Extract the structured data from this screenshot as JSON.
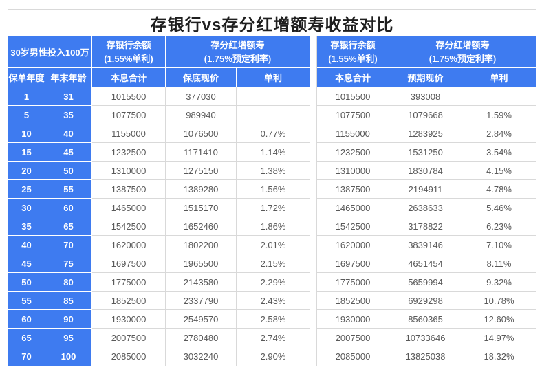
{
  "title": "存银行vs存分红增额寿收益对比",
  "colors": {
    "header_blue": "#3e7bf0",
    "grid_line": "#d9d9d9",
    "data_text": "#595959",
    "header_text": "#ffffff",
    "title_text": "#1f1f1f"
  },
  "header": {
    "corner": "30岁男性投入100万",
    "groups": {
      "left_bank": {
        "line1": "存银行余额",
        "line2": "(1.55%单利)"
      },
      "left_insurance": {
        "line1": "存分红增额寿",
        "line2": "(1.75%预定利率)"
      },
      "right_bank": {
        "line1": "存银行余额",
        "line2": "(1.55%单利)"
      },
      "right_insurance": {
        "line1": "存分红增额寿",
        "line2": "(1.75%预定利率)"
      }
    },
    "subheaders": {
      "policy_year": "保单年度",
      "age_year_end": "年末年龄",
      "left_principal_interest": "本息合计",
      "guaranteed_cash_value": "保底现价",
      "left_simple_interest": "单利",
      "right_principal_interest": "本息合计",
      "expected_cash_value": "预期现价",
      "right_simple_interest": "单利"
    }
  },
  "rows": [
    {
      "policy_year": "1",
      "age": "31",
      "bank_total_left": "1015500",
      "guaranteed_value": "377030",
      "simple_rate_left": "",
      "bank_total_right": "1015500",
      "expected_value": "393008",
      "simple_rate_right": ""
    },
    {
      "policy_year": "5",
      "age": "35",
      "bank_total_left": "1077500",
      "guaranteed_value": "989940",
      "simple_rate_left": "",
      "bank_total_right": "1077500",
      "expected_value": "1079668",
      "simple_rate_right": "1.59%"
    },
    {
      "policy_year": "10",
      "age": "40",
      "bank_total_left": "1155000",
      "guaranteed_value": "1076500",
      "simple_rate_left": "0.77%",
      "bank_total_right": "1155000",
      "expected_value": "1283925",
      "simple_rate_right": "2.84%"
    },
    {
      "policy_year": "15",
      "age": "45",
      "bank_total_left": "1232500",
      "guaranteed_value": "1171410",
      "simple_rate_left": "1.14%",
      "bank_total_right": "1232500",
      "expected_value": "1531250",
      "simple_rate_right": "3.54%"
    },
    {
      "policy_year": "20",
      "age": "50",
      "bank_total_left": "1310000",
      "guaranteed_value": "1275150",
      "simple_rate_left": "1.38%",
      "bank_total_right": "1310000",
      "expected_value": "1830784",
      "simple_rate_right": "4.15%"
    },
    {
      "policy_year": "25",
      "age": "55",
      "bank_total_left": "1387500",
      "guaranteed_value": "1389280",
      "simple_rate_left": "1.56%",
      "bank_total_right": "1387500",
      "expected_value": "2194911",
      "simple_rate_right": "4.78%"
    },
    {
      "policy_year": "30",
      "age": "60",
      "bank_total_left": "1465000",
      "guaranteed_value": "1515170",
      "simple_rate_left": "1.72%",
      "bank_total_right": "1465000",
      "expected_value": "2638633",
      "simple_rate_right": "5.46%"
    },
    {
      "policy_year": "35",
      "age": "65",
      "bank_total_left": "1542500",
      "guaranteed_value": "1652460",
      "simple_rate_left": "1.86%",
      "bank_total_right": "1542500",
      "expected_value": "3178822",
      "simple_rate_right": "6.23%"
    },
    {
      "policy_year": "40",
      "age": "70",
      "bank_total_left": "1620000",
      "guaranteed_value": "1802200",
      "simple_rate_left": "2.01%",
      "bank_total_right": "1620000",
      "expected_value": "3839146",
      "simple_rate_right": "7.10%"
    },
    {
      "policy_year": "45",
      "age": "75",
      "bank_total_left": "1697500",
      "guaranteed_value": "1965500",
      "simple_rate_left": "2.15%",
      "bank_total_right": "1697500",
      "expected_value": "4651454",
      "simple_rate_right": "8.11%"
    },
    {
      "policy_year": "50",
      "age": "80",
      "bank_total_left": "1775000",
      "guaranteed_value": "2143580",
      "simple_rate_left": "2.29%",
      "bank_total_right": "1775000",
      "expected_value": "5659994",
      "simple_rate_right": "9.32%"
    },
    {
      "policy_year": "55",
      "age": "85",
      "bank_total_left": "1852500",
      "guaranteed_value": "2337790",
      "simple_rate_left": "2.43%",
      "bank_total_right": "1852500",
      "expected_value": "6929298",
      "simple_rate_right": "10.78%"
    },
    {
      "policy_year": "60",
      "age": "90",
      "bank_total_left": "1930000",
      "guaranteed_value": "2549570",
      "simple_rate_left": "2.58%",
      "bank_total_right": "1930000",
      "expected_value": "8560365",
      "simple_rate_right": "12.60%"
    },
    {
      "policy_year": "65",
      "age": "95",
      "bank_total_left": "2007500",
      "guaranteed_value": "2780480",
      "simple_rate_left": "2.74%",
      "bank_total_right": "2007500",
      "expected_value": "10733646",
      "simple_rate_right": "14.97%"
    },
    {
      "policy_year": "70",
      "age": "100",
      "bank_total_left": "2085000",
      "guaranteed_value": "3032240",
      "simple_rate_left": "2.90%",
      "bank_total_right": "2085000",
      "expected_value": "13825038",
      "simple_rate_right": "18.32%"
    }
  ]
}
